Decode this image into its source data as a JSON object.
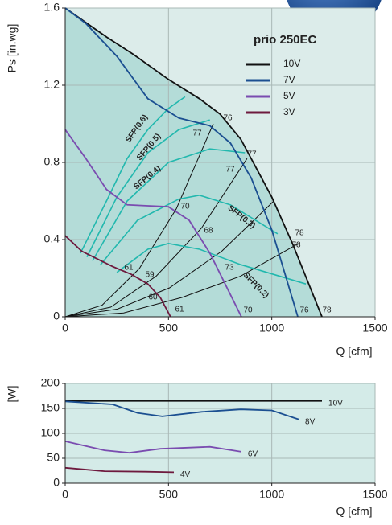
{
  "chart_data": [
    {
      "type": "line",
      "title": "prio 250EC",
      "y_label": "Ps [in.wg]",
      "x_label": "Q [cfm]",
      "xlim": [
        0,
        1500
      ],
      "xticks": [
        0,
        500,
        1000,
        1500
      ],
      "ylim": [
        0,
        1.6
      ],
      "yticks": [
        0,
        0.4,
        0.8,
        1.2,
        1.6
      ],
      "grid": true,
      "legend": "upper right",
      "series": [
        {
          "name": "10V",
          "color": "#111111",
          "x": [
            0,
            200,
            330,
            500,
            650,
            750,
            850,
            1000,
            1100,
            1243
          ],
          "values": [
            1.6,
            1.45,
            1.36,
            1.23,
            1.13,
            1.05,
            0.92,
            0.62,
            0.38,
            0
          ]
        },
        {
          "name": "7V",
          "color": "#1b4f91",
          "x": [
            0,
            100,
            250,
            400,
            550,
            700,
            800,
            900,
            1000,
            1126
          ],
          "values": [
            1.6,
            1.52,
            1.35,
            1.13,
            1.03,
            0.99,
            0.9,
            0.72,
            0.45,
            0
          ]
        },
        {
          "name": "5V",
          "color": "#7a4cb0",
          "x": [
            0,
            100,
            200,
            300,
            400,
            500,
            600,
            700,
            853
          ],
          "values": [
            0.97,
            0.82,
            0.66,
            0.58,
            0.575,
            0.57,
            0.5,
            0.33,
            0
          ]
        },
        {
          "name": "3V",
          "color": "#6e1a3e",
          "x": [
            0,
            80,
            230,
            320,
            400,
            460,
            510
          ],
          "values": [
            0.42,
            0.34,
            0.26,
            0.22,
            0.17,
            0.1,
            0
          ]
        }
      ],
      "sfp_curves": [
        {
          "name": "SFP(0.6)",
          "color": "#22b8ae",
          "x": [
            74,
            200,
            300,
            400,
            500,
            580
          ],
          "values": [
            0.33,
            0.6,
            0.82,
            0.97,
            1.08,
            1.14
          ]
        },
        {
          "name": "SFP(0.5)",
          "color": "#22b8ae",
          "x": [
            105,
            250,
            400,
            550,
            700
          ],
          "values": [
            0.31,
            0.62,
            0.85,
            0.97,
            1.02
          ]
        },
        {
          "name": "SFP(0.4)",
          "color": "#22b8ae",
          "x": [
            132,
            300,
            500,
            700,
            870
          ],
          "values": [
            0.29,
            0.6,
            0.8,
            0.87,
            0.85
          ]
        },
        {
          "name": "SFP(0.3)",
          "color": "#22b8ae",
          "x": [
            171,
            350,
            550,
            650,
            800,
            1028
          ],
          "values": [
            0.27,
            0.5,
            0.61,
            0.63,
            0.58,
            0.43
          ]
        },
        {
          "name": "SFP(0.2)",
          "color": "#22b8ae",
          "x": [
            250,
            400,
            500,
            650,
            850,
            1165
          ],
          "values": [
            0.23,
            0.35,
            0.38,
            0.35,
            0.27,
            0.17
          ]
        }
      ],
      "system_curves": [
        {
          "color": "#111111",
          "x": [
            0,
            179,
            359,
            538,
            717
          ],
          "values": [
            0,
            0.06,
            0.25,
            0.56,
            1.0
          ]
        },
        {
          "color": "#111111",
          "x": [
            0,
            220,
            440,
            660,
            880
          ],
          "values": [
            0,
            0.05,
            0.21,
            0.46,
            0.82
          ]
        },
        {
          "color": "#111111",
          "x": [
            0,
            253,
            505,
            758,
            1010
          ],
          "values": [
            0,
            0.04,
            0.15,
            0.34,
            0.6
          ]
        },
        {
          "color": "#111111",
          "x": [
            0,
            283,
            565,
            848,
            1130
          ],
          "values": [
            0,
            0.02,
            0.1,
            0.21,
            0.38
          ]
        }
      ],
      "annotations": [
        "76",
        "77",
        "77",
        "77",
        "70",
        "68",
        "78",
        "78",
        "61",
        "59",
        "60",
        "61",
        "73",
        "70",
        "76",
        "78"
      ]
    },
    {
      "type": "line",
      "y_label": "[W]",
      "x_label": "Q [cfm]",
      "xlim": [
        0,
        1500
      ],
      "xticks": [
        0,
        500,
        1000,
        1500
      ],
      "ylim": [
        0,
        200
      ],
      "yticks": [
        0,
        50,
        100,
        150,
        200
      ],
      "grid": true,
      "series": [
        {
          "name": "10V",
          "color": "#111111",
          "x": [
            0,
            1243
          ],
          "values": [
            165,
            165
          ]
        },
        {
          "name": "8V",
          "color": "#1b4f91",
          "x": [
            0,
            230,
            350,
            470,
            660,
            850,
            1000,
            1130
          ],
          "values": [
            164,
            158,
            141,
            134,
            143,
            148,
            146,
            128
          ]
        },
        {
          "name": "6V",
          "color": "#7a4cb0",
          "x": [
            0,
            190,
            310,
            460,
            700,
            853
          ],
          "values": [
            84,
            66,
            61,
            69,
            73,
            63
          ]
        },
        {
          "name": "4V",
          "color": "#6e1a3e",
          "x": [
            0,
            190,
            390,
            526
          ],
          "values": [
            31,
            24,
            23,
            22
          ]
        }
      ]
    }
  ]
}
